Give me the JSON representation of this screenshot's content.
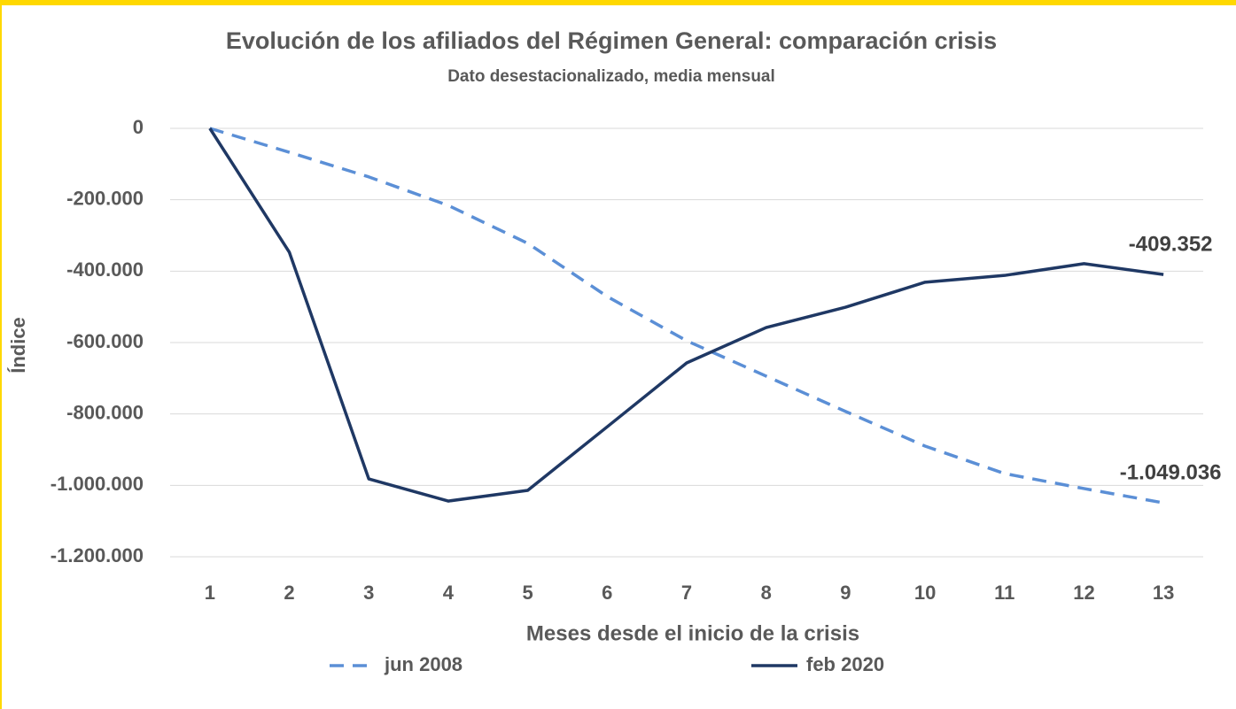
{
  "chart_data": {
    "type": "line",
    "title": "Evolución de los afiliados del Régimen General: comparación crisis",
    "subtitle": "Dato desestacionalizado, media mensual",
    "x_label": "Meses desde el inicio de la crisis",
    "y_label": "Índice",
    "categories": [
      1,
      2,
      3,
      4,
      5,
      6,
      7,
      8,
      9,
      10,
      11,
      12,
      13
    ],
    "series": [
      {
        "name": "jun 2008",
        "color": "#5b8fd6",
        "dashed": true,
        "values": [
          0,
          -67000,
          -136000,
          -216000,
          -322000,
          -471000,
          -595000,
          -694000,
          -793000,
          -890000,
          -967000,
          -1009000,
          -1049036
        ],
        "value_labels": [
          null,
          null,
          null,
          null,
          null,
          null,
          null,
          null,
          null,
          null,
          null,
          null,
          "-1.049.036"
        ]
      },
      {
        "name": "feb 2020",
        "color": "#1f3864",
        "dashed": false,
        "values": [
          0,
          -347000,
          -982000,
          -1044000,
          -1014000,
          -836000,
          -657000,
          -558000,
          -501000,
          -431000,
          -412000,
          -379000,
          -409352
        ],
        "value_labels": [
          null,
          null,
          null,
          null,
          null,
          null,
          null,
          null,
          null,
          null,
          null,
          null,
          "-409.352"
        ]
      }
    ],
    "ylim": [
      -1200000,
      0
    ],
    "yticks": [
      0,
      {
        "value": -200000,
        "label": "-200.000"
      },
      {
        "value": -400000,
        "label": "-400.000"
      },
      {
        "value": -600000,
        "label": "-600.000"
      },
      {
        "value": -800000,
        "label": "-800.000"
      },
      {
        "value": -1000000,
        "label": "-1.000.000"
      },
      {
        "value": -1200000,
        "label": "-1.200.000"
      }
    ],
    "grid": true,
    "legend": "bottom"
  }
}
